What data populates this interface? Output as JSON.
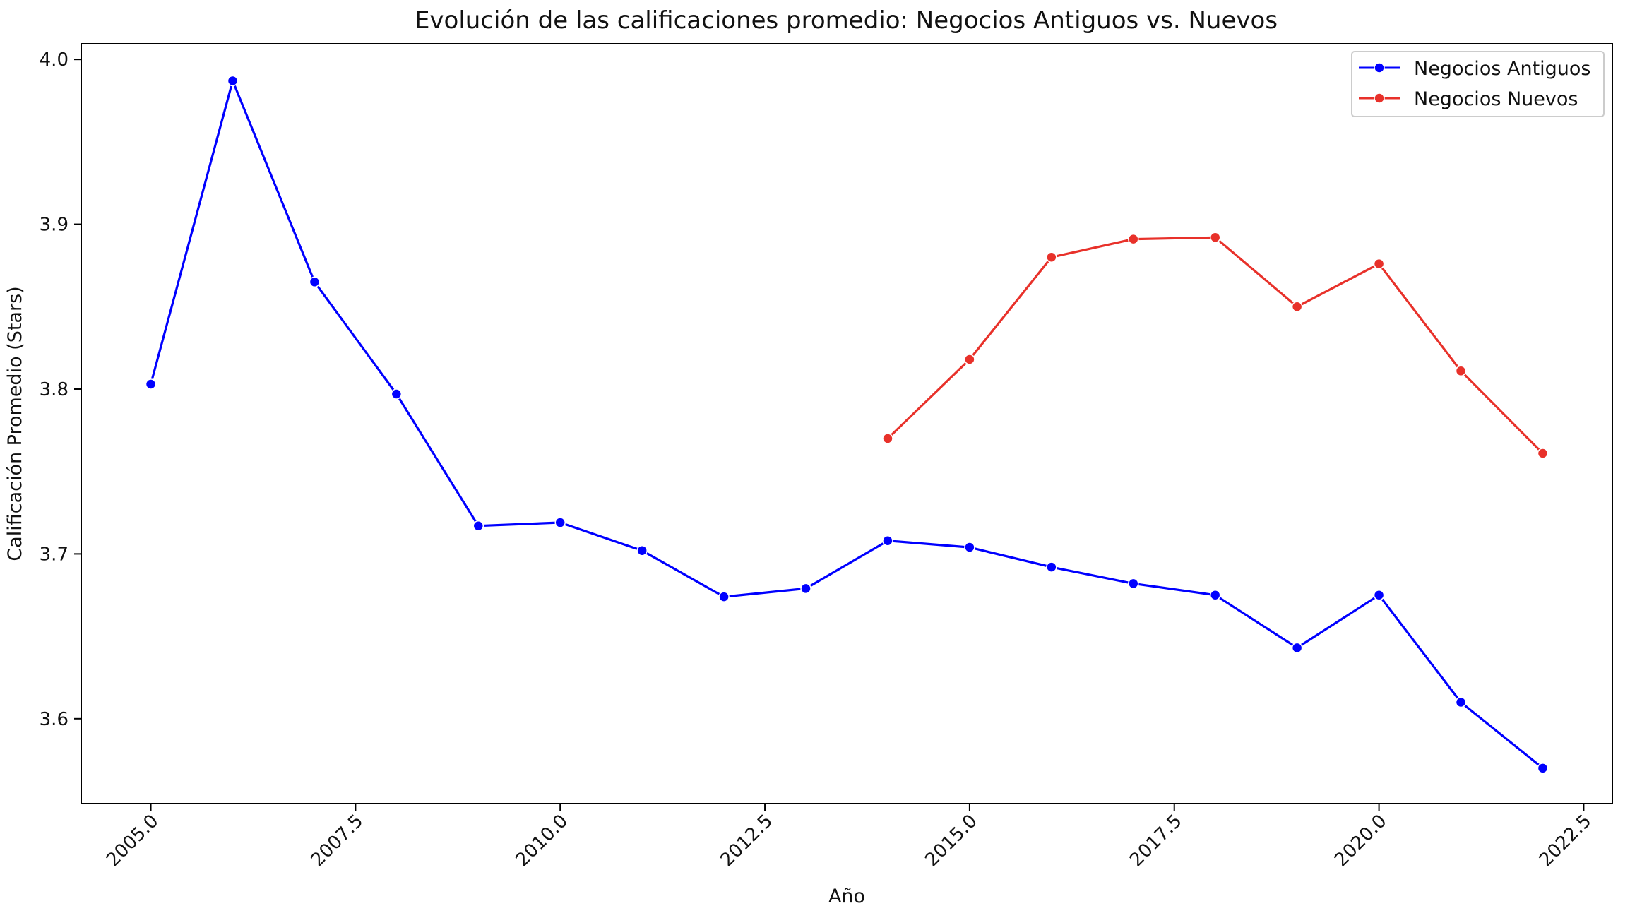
{
  "chart_data": {
    "type": "line",
    "title": "Evolución de las calificaciones promedio: Negocios Antiguos vs. Nuevos",
    "xlabel": "Año",
    "ylabel": "Calificación Promedio (Stars)",
    "xlim": [
      2004.15,
      2022.85
    ],
    "ylim": [
      3.5485,
      4.0095
    ],
    "x_ticks": [
      2005.0,
      2007.5,
      2010.0,
      2012.5,
      2015.0,
      2017.5,
      2020.0,
      2022.5
    ],
    "x_tick_labels": [
      "2005.0",
      "2007.5",
      "2010.0",
      "2012.5",
      "2015.0",
      "2017.5",
      "2020.0",
      "2022.5"
    ],
    "y_ticks": [
      3.6,
      3.7,
      3.8,
      3.9,
      4.0
    ],
    "y_tick_labels": [
      "3.6",
      "3.7",
      "3.8",
      "3.9",
      "4.0"
    ],
    "grid": false,
    "legend_position": "top-right",
    "series": [
      {
        "name": "Negocios Antiguos",
        "color": "#0000ff",
        "x": [
          2005,
          2006,
          2007,
          2008,
          2009,
          2010,
          2011,
          2012,
          2013,
          2014,
          2015,
          2016,
          2017,
          2018,
          2019,
          2020,
          2021,
          2022
        ],
        "y": [
          3.803,
          3.987,
          3.865,
          3.797,
          3.717,
          3.719,
          3.702,
          3.674,
          3.679,
          3.708,
          3.704,
          3.692,
          3.682,
          3.675,
          3.643,
          3.675,
          3.61,
          3.57
        ]
      },
      {
        "name": "Negocios Nuevos",
        "color": "#e8312a",
        "x": [
          2014,
          2015,
          2016,
          2017,
          2018,
          2019,
          2020,
          2021,
          2022
        ],
        "y": [
          3.77,
          3.818,
          3.88,
          3.891,
          3.892,
          3.85,
          3.876,
          3.811,
          3.761
        ]
      }
    ]
  }
}
